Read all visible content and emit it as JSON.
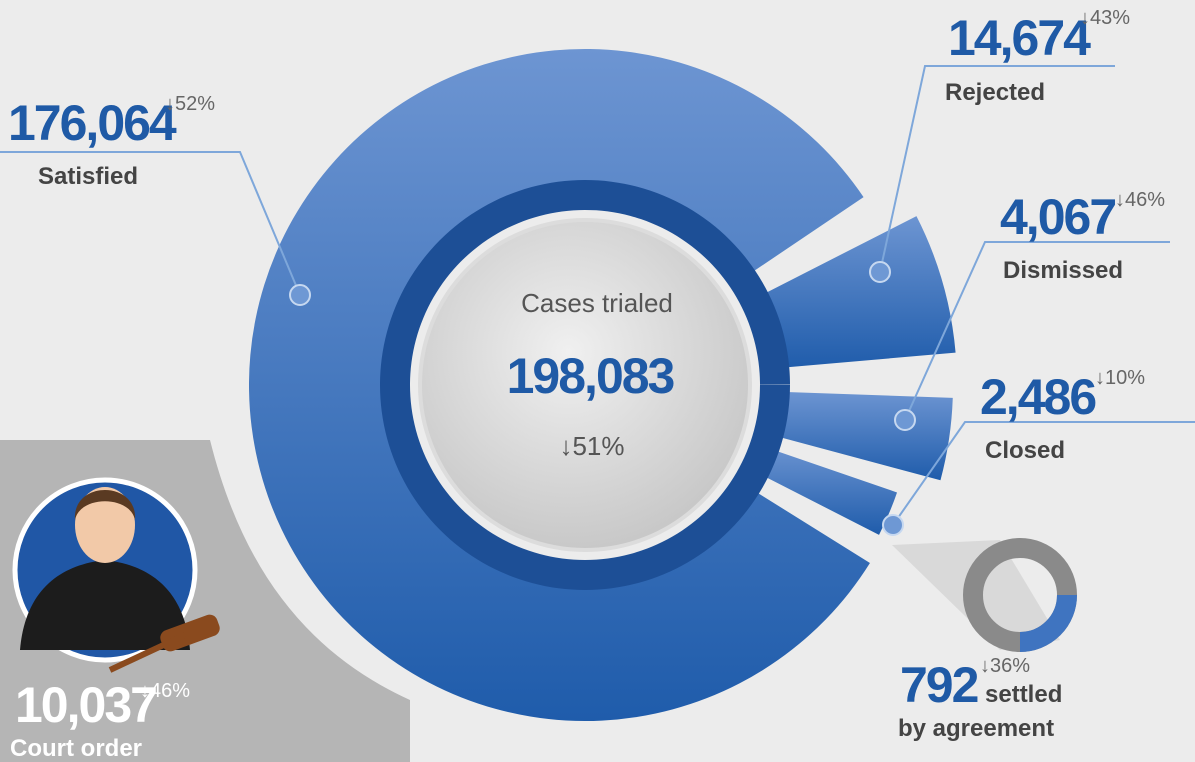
{
  "center": {
    "label": "Cases trialed",
    "value": "198,083",
    "change": "↓51%"
  },
  "segments": [
    {
      "value": "176,064",
      "change": "↓52%",
      "label": [
        "Satisfied"
      ]
    },
    {
      "value": "14,674",
      "change": "↓43%",
      "label": [
        "Rejected"
      ]
    },
    {
      "value": "4,067",
      "change": "↓46%",
      "label": [
        "Dismissed"
      ]
    },
    {
      "value": "2,486",
      "change": "↓10%",
      "label": [
        "Closed"
      ]
    },
    {
      "value": "792",
      "change": "↓36%",
      "label": [
        "settled",
        "by agreement"
      ]
    }
  ],
  "court_order": {
    "value": "10,037",
    "change": "↓46%",
    "label": "Court order"
  }
}
